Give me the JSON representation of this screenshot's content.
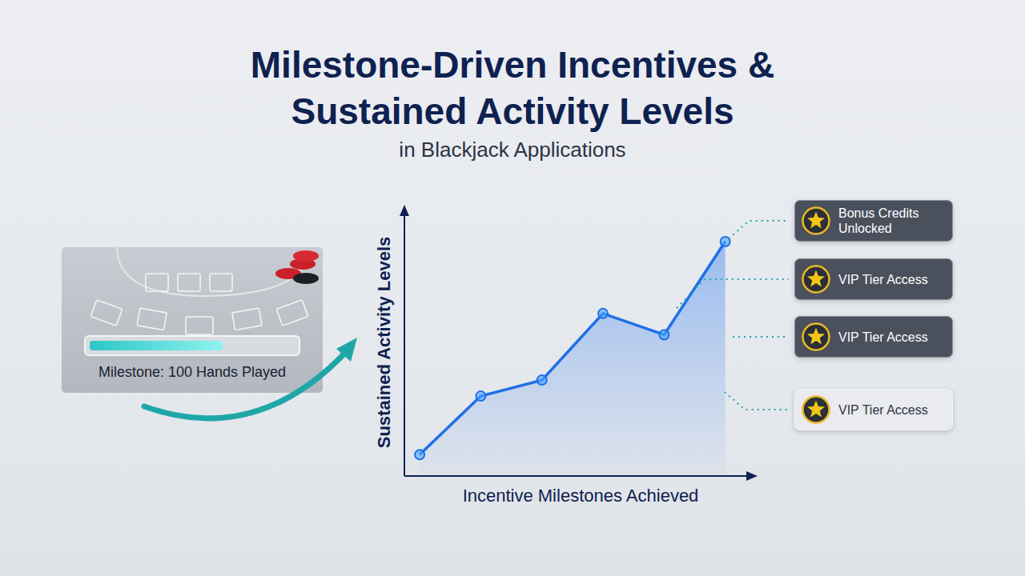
{
  "chart_data": {
    "type": "line",
    "title": "Milestone-Driven Incentives & Sustained Activity Levels",
    "subtitle": "in Blackjack Applications",
    "x_label": "Incentive Milestones Achieved",
    "y_label": "Sustained Activity Levels",
    "x": [
      1,
      2,
      3,
      4,
      5,
      6
    ],
    "values": [
      8,
      30,
      36,
      61,
      53,
      88
    ],
    "xlim": [
      0.75,
      6.45
    ],
    "ylim": [
      0,
      100
    ],
    "color": "#1f6fe8",
    "marker": "circle",
    "grid": false,
    "tick_labels": false,
    "annotations": [
      "Milestone: 100 Hands Played",
      "Bonus Credits Unlocked",
      "VIP Tier Access",
      "VIP Tier Access",
      "VIP Tier Access"
    ]
  }
}
